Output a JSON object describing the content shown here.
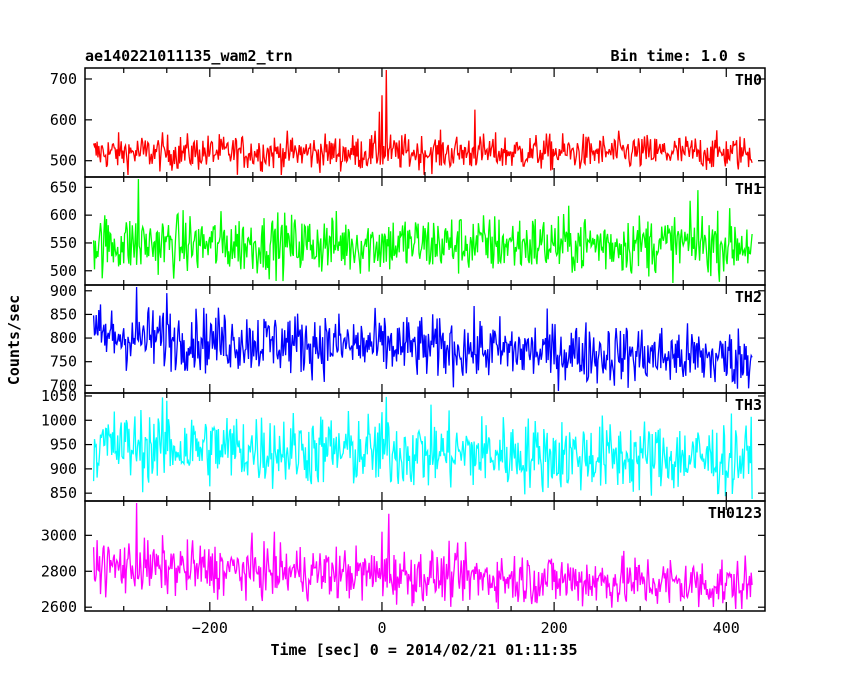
{
  "header": {
    "title": "ae140221011135_wam2_trn",
    "bin_time": "Bin time: 1.0 s"
  },
  "chart_data": {
    "type": "line",
    "title": "ae140221011135_wam2_trn",
    "subtitle": "Bin time: 1.0 s",
    "xlabel": "Time [sec] 0 = 2014/02/21 01:11:35",
    "ylabel": "Counts/sec",
    "xlim": [
      -345,
      445
    ],
    "xticks": [
      -200,
      0,
      200,
      400
    ],
    "x_start": -335,
    "x_end": 430,
    "x_step": 1,
    "grid": false,
    "panels": [
      {
        "name": "TH0",
        "color": "#ff0000",
        "ylim": [
          465,
          722
        ],
        "yticks": [
          500,
          600,
          700
        ],
        "mean": 520,
        "noise": 22,
        "features": [
          {
            "x": 5,
            "value": 722
          },
          {
            "x": 0,
            "value": 660
          },
          {
            "x": -3,
            "value": 620
          },
          {
            "x": 108,
            "value": 625
          }
        ]
      },
      {
        "name": "TH1",
        "color": "#00ff00",
        "ylim": [
          478,
          665
        ],
        "yticks": [
          500,
          550,
          600,
          650
        ],
        "mean": 548,
        "noise": 27,
        "features": [
          {
            "x": -283,
            "value": 665
          },
          {
            "x": 367,
            "value": 645
          }
        ]
      },
      {
        "name": "TH2",
        "color": "#0000ff",
        "ylim": [
          688,
          908
        ],
        "yticks": [
          700,
          750,
          800,
          850,
          900
        ],
        "mean_start": 805,
        "mean_end": 755,
        "noise": 33,
        "features": [
          {
            "x": -285,
            "value": 908
          },
          {
            "x": -250,
            "value": 895
          }
        ]
      },
      {
        "name": "TH3",
        "color": "#00ffff",
        "ylim": [
          838,
          1052
        ],
        "yticks": [
          850,
          900,
          950,
          1000,
          1050
        ],
        "mean_start": 948,
        "mean_end": 920,
        "noise": 38,
        "features": [
          {
            "x": 5,
            "value": 1048
          },
          {
            "x": -250,
            "value": 1040
          }
        ]
      },
      {
        "name": "TH0123",
        "color": "#ff00ff",
        "ylim": [
          2590,
          3180
        ],
        "yticks": [
          2600,
          2800,
          3000
        ],
        "mean_start": 2830,
        "mean_end": 2720,
        "noise": 75,
        "features": [
          {
            "x": -285,
            "value": 3180
          },
          {
            "x": 8,
            "value": 3120
          },
          {
            "x": 0,
            "value": 3020
          }
        ]
      }
    ]
  }
}
